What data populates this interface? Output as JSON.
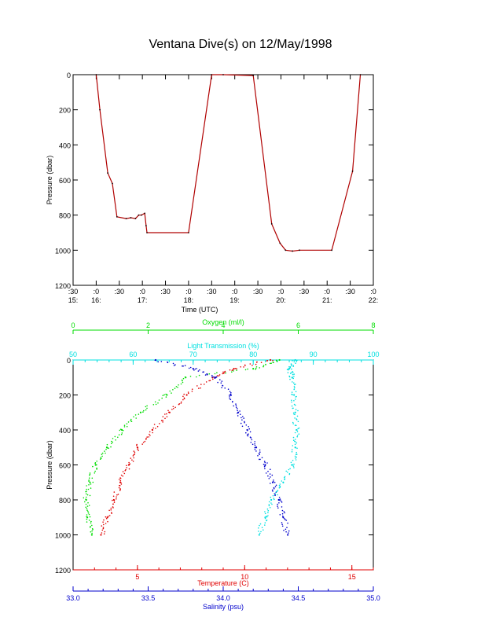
{
  "title": "Ventana Dive(s) on 12/May/1998",
  "colors": {
    "axis": "#000000",
    "trace": "#b00000",
    "trace_dark": "#1a0000",
    "oxygen": "#00dd00",
    "transmission": "#00e0e0",
    "temperature": "#e00000",
    "salinity": "#0000cc"
  },
  "chart_data": [
    {
      "type": "line",
      "name": "pressure-time",
      "xlabel": "Time (UTC)",
      "ylabel": "Pressure (dbar)",
      "ylim": [
        1200,
        0
      ],
      "yticks": [
        "0",
        "200",
        "400",
        "600",
        "800",
        "1000",
        "1200"
      ],
      "xticks": [
        {
          "top": ":30",
          "bottom": "15:"
        },
        {
          "top": ":0",
          "bottom": "16:"
        },
        {
          "top": ":30",
          "bottom": ""
        },
        {
          "top": ":0",
          "bottom": "17:"
        },
        {
          "top": ":30",
          "bottom": ""
        },
        {
          "top": ":0",
          "bottom": "18:"
        },
        {
          "top": ":30",
          "bottom": ""
        },
        {
          "top": ":0",
          "bottom": "19:"
        },
        {
          "top": ":30",
          "bottom": ""
        },
        {
          "top": ":0",
          "bottom": "20:"
        },
        {
          "top": ":30",
          "bottom": ""
        },
        {
          "top": ":0",
          "bottom": "21:"
        },
        {
          "top": ":30",
          "bottom": ""
        },
        {
          "top": ":0",
          "bottom": "22:"
        }
      ],
      "xlim": [
        15.5,
        22.0
      ],
      "series": [
        {
          "x": [
            16.0,
            16.08,
            16.25,
            16.35,
            16.45,
            16.65,
            16.75,
            16.85,
            16.92,
            16.98,
            17.05,
            17.08,
            17.1,
            18.0,
            18.5,
            18.75,
            19.4,
            19.8,
            19.98,
            20.1,
            20.25,
            20.4,
            21.1,
            21.55,
            21.72
          ],
          "y": [
            0,
            200,
            560,
            620,
            810,
            820,
            815,
            820,
            800,
            800,
            790,
            860,
            900,
            900,
            0,
            0,
            5,
            850,
            960,
            1000,
            1005,
            1000,
            1000,
            550,
            0
          ]
        }
      ]
    },
    {
      "type": "scatter",
      "name": "profiles",
      "ylabel": "Pressure (dbar)",
      "ylim": [
        1200,
        0
      ],
      "yticks": [
        "0",
        "200",
        "400",
        "600",
        "800",
        "1000",
        "1200"
      ],
      "axes": {
        "oxygen": {
          "label": "Oxygen (ml/l)",
          "range": [
            0,
            8
          ],
          "ticks": [
            "0",
            "2",
            "4",
            "6",
            "8"
          ]
        },
        "transmission": {
          "label": "Light Transmission (%)",
          "range": [
            50,
            100
          ],
          "ticks": [
            "50",
            "60",
            "70",
            "80",
            "90",
            "100"
          ]
        },
        "temperature": {
          "label": "Temperature (C)",
          "range": [
            2,
            16
          ],
          "ticks": [
            "5",
            "10",
            "15"
          ]
        },
        "salinity": {
          "label": "Salinity (psu)",
          "range": [
            33.0,
            35.0
          ],
          "ticks": [
            "33.0",
            "33.5",
            "34.0",
            "34.5",
            "35.0"
          ]
        }
      },
      "series": [
        {
          "key": "oxygen",
          "p": [
            0,
            50,
            100,
            200,
            300,
            400,
            500,
            600,
            700,
            800,
            900,
            1000
          ],
          "v": [
            5.5,
            4.8,
            3.0,
            2.5,
            1.8,
            1.3,
            0.9,
            0.6,
            0.45,
            0.35,
            0.38,
            0.5
          ]
        },
        {
          "key": "temperature",
          "p": [
            0,
            50,
            100,
            200,
            300,
            400,
            500,
            600,
            700,
            800,
            900,
            1000
          ],
          "v": [
            11.2,
            9.5,
            8.5,
            7.3,
            6.5,
            5.7,
            5.0,
            4.6,
            4.2,
            3.9,
            3.6,
            3.3
          ]
        },
        {
          "key": "salinity",
          "p": [
            0,
            50,
            100,
            200,
            300,
            400,
            500,
            600,
            700,
            800,
            900,
            1000
          ],
          "v": [
            33.55,
            33.8,
            33.95,
            34.05,
            34.1,
            34.16,
            34.22,
            34.28,
            34.33,
            34.37,
            34.4,
            34.43
          ]
        },
        {
          "key": "transmission",
          "p": [
            0,
            50,
            100,
            200,
            300,
            400,
            500,
            600,
            700,
            800,
            900,
            1000
          ],
          "v": [
            87.0,
            86.0,
            86.5,
            86.8,
            87.0,
            87.2,
            87.0,
            86.5,
            85.0,
            83.0,
            82.0,
            81.0
          ]
        }
      ]
    }
  ]
}
